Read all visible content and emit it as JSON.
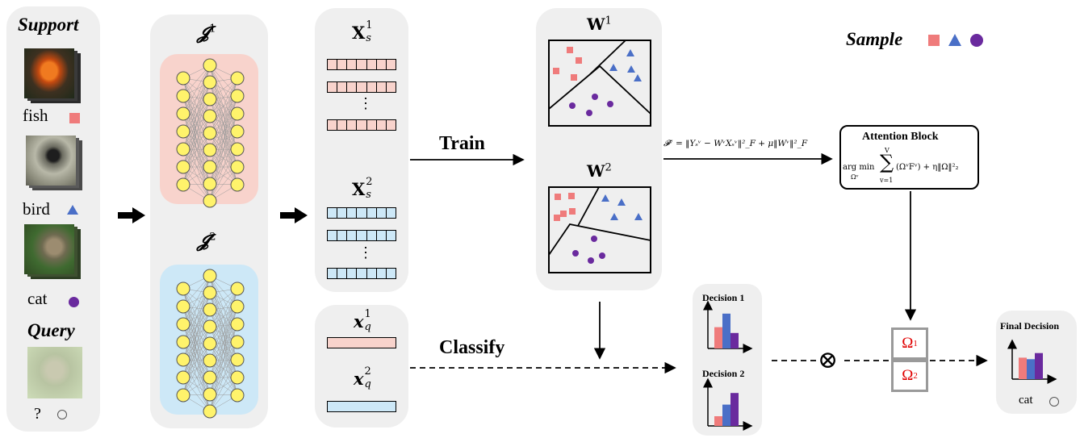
{
  "support": {
    "title": "Support",
    "classes": [
      {
        "label": "fish",
        "marker": "square",
        "color": "#ef7b7b",
        "image": "fish-image"
      },
      {
        "label": "bird",
        "marker": "triangle",
        "color": "#4a6fc7",
        "image": "bird-image"
      },
      {
        "label": "cat",
        "marker": "circle",
        "color": "#6a2a9e",
        "image": "cat-image"
      }
    ],
    "query_title": "Query",
    "query_label": "?"
  },
  "networks": [
    {
      "label": "𝓙",
      "sup": "1",
      "color": "#f8d3cc"
    },
    {
      "label": "𝓙",
      "sup": "2",
      "color": "#cde8f7"
    }
  ],
  "features": {
    "support": [
      {
        "label": "X",
        "sub": "s",
        "sup": "1",
        "color": "#f8d3cc"
      },
      {
        "label": "X",
        "sub": "s",
        "sup": "2",
        "color": "#cde8f7"
      }
    ],
    "query": [
      {
        "label": "x",
        "sub": "q",
        "sup": "1",
        "color": "#f8d3cc"
      },
      {
        "label": "x",
        "sub": "q",
        "sup": "2",
        "color": "#cde8f7"
      }
    ],
    "ellipsis": "⋮"
  },
  "train_label": "Train",
  "classify_label": "Classify",
  "classifiers": [
    {
      "label": "W",
      "sup": "1"
    },
    {
      "label": "W",
      "sup": "2"
    }
  ],
  "legend": {
    "title": "Sample",
    "markers": [
      "square",
      "triangle",
      "circle"
    ]
  },
  "loss_formula": "𝓕ᵛ = ‖Yₛᵛ − WᵛXₛᵛ‖²_F + μ‖Wᵛ‖²_F",
  "attention": {
    "title": "Attention Block",
    "formula_prefix": "arg min",
    "formula_under": "Ωᵛ",
    "sum_top": "V",
    "sum_bottom": "v=1",
    "formula_body": "(ΩᵛFᵛ) + η‖Ω‖²₂"
  },
  "decisions": [
    {
      "title": "Decision 1",
      "values": [
        0.55,
        0.9,
        0.4
      ]
    },
    {
      "title": "Decision 2",
      "values": [
        0.25,
        0.55,
        0.85
      ]
    }
  ],
  "fusion_symbol": "⊗",
  "omegas": [
    {
      "label": "Ω",
      "sup": "1"
    },
    {
      "label": "Ω",
      "sup": "2"
    }
  ],
  "final": {
    "title": "Final Decision",
    "values": [
      0.7,
      0.65,
      0.85
    ],
    "answer": "cat"
  },
  "colors": {
    "red": "#ef7b7b",
    "blue": "#4a6fc7",
    "purple": "#6a2a9e",
    "panel": "#efefef"
  }
}
